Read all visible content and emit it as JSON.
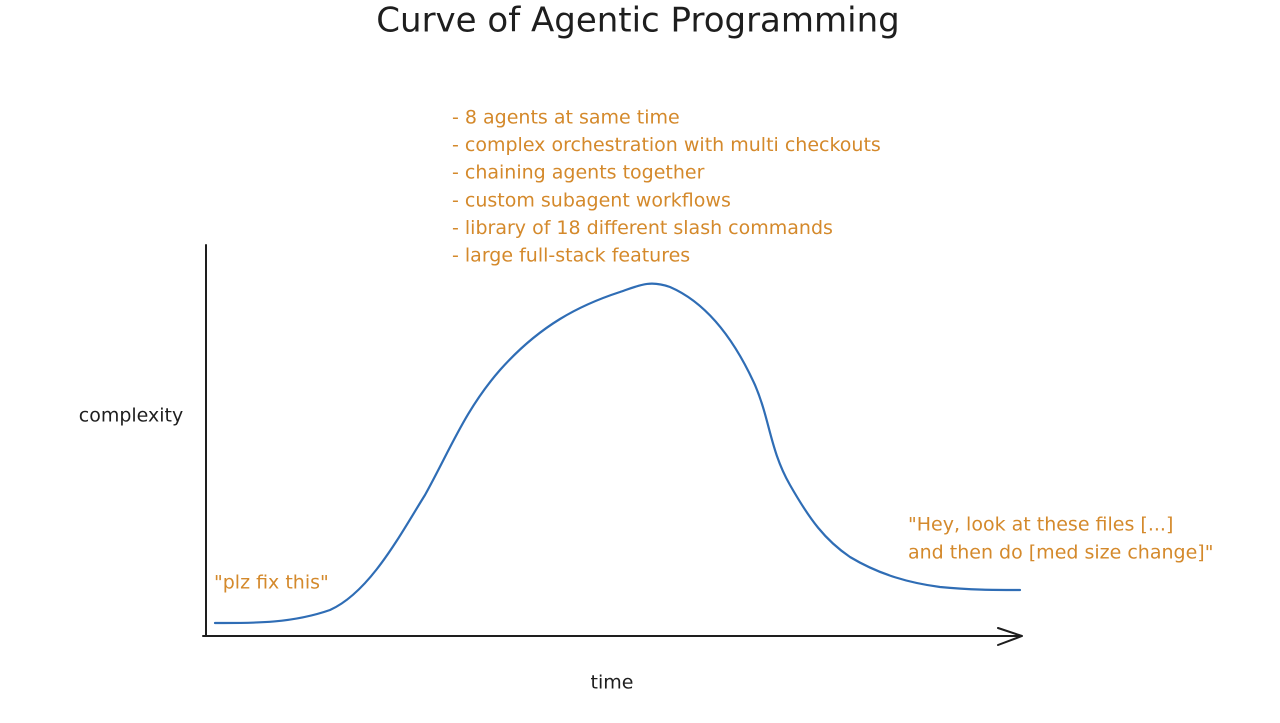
{
  "title": "Curve of Agentic Programming",
  "axes": {
    "y_label": "complexity",
    "x_label": "time"
  },
  "annotations": {
    "start": "\"plz fix this\"",
    "peak": [
      "- 8 agents at same time",
      "- complex orchestration with multi checkouts",
      "- chaining agents together",
      "- custom subagent workflows",
      "- library of 18 different slash commands",
      "- large full-stack features"
    ],
    "end": [
      "\"Hey, look at these files [...]",
      "and then do [med size change]\""
    ]
  }
}
